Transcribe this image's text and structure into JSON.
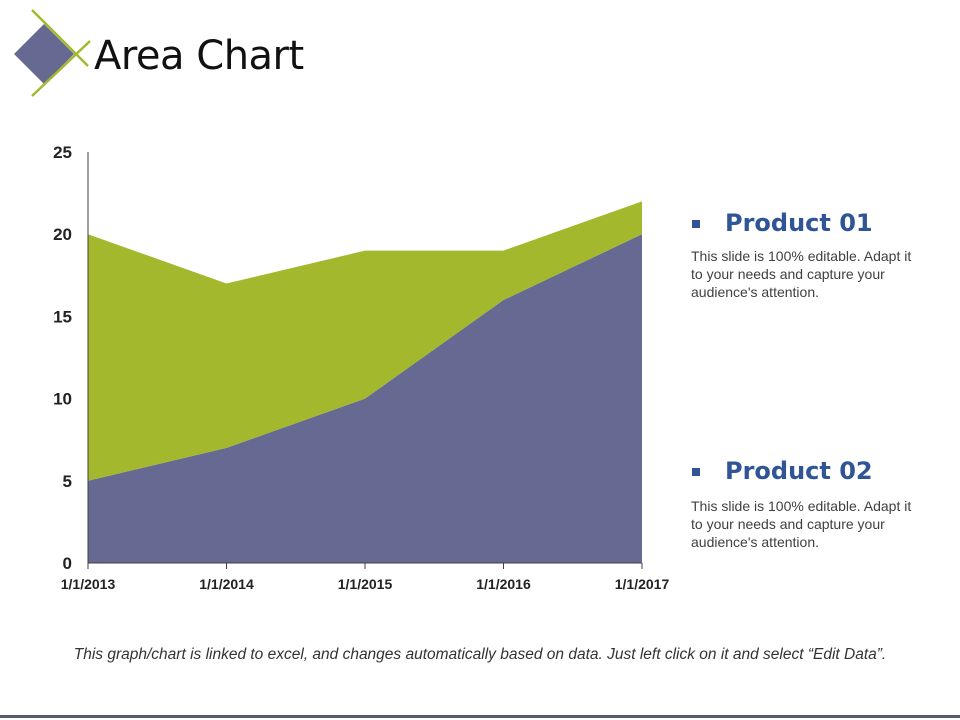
{
  "title": "Area Chart",
  "colors": {
    "product01": "#a4b82d",
    "product02": "#666a92",
    "legend_title": "#2f5597",
    "accent_line": "#a4b82d",
    "diamond": "#666a92"
  },
  "legend": [
    {
      "title": "Product 01",
      "description": "This slide is 100% editable. Adapt it to your needs and capture your audience's attention."
    },
    {
      "title": "Product 02",
      "description": "This slide is 100% editable. Adapt it to your needs and capture your audience's attention."
    }
  ],
  "footnote": "This graph/chart is linked to excel, and changes automatically based on data. Just left click on it and select “Edit Data”.",
  "chart_data": {
    "type": "area",
    "stacked": true,
    "title": "",
    "xlabel": "",
    "ylabel": "",
    "categories": [
      "1/1/2013",
      "1/1/2014",
      "1/1/2015",
      "1/1/2016",
      "1/1/2017"
    ],
    "series": [
      {
        "name": "Product 02",
        "color": "#666a92",
        "values": [
          5,
          7,
          10,
          16,
          20
        ]
      },
      {
        "name": "Product 01",
        "color": "#a4b82d",
        "values": [
          15,
          10,
          9,
          3,
          2
        ]
      }
    ],
    "ylim": [
      0,
      25
    ],
    "yticks": [
      0,
      5,
      10,
      15,
      20,
      25
    ],
    "grid": false
  }
}
